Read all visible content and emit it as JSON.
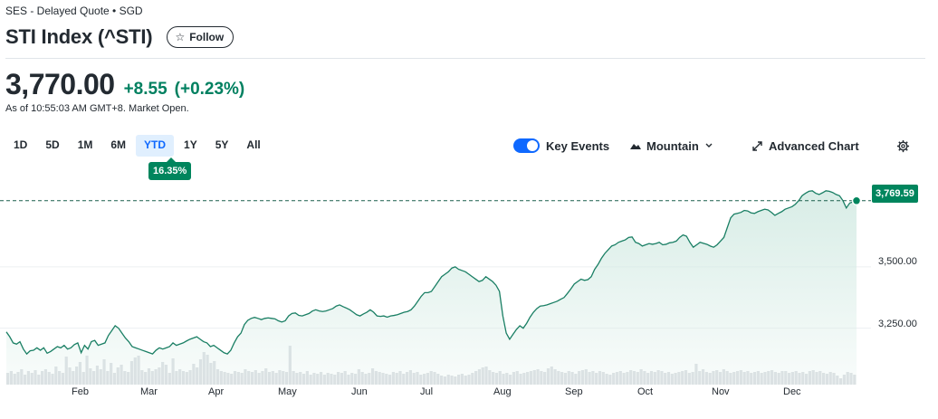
{
  "header": {
    "exchange_line": "SES - Delayed Quote • SGD",
    "title": "STI Index (^STI)",
    "follow_label": "Follow",
    "follow_icon": "star-outline-icon"
  },
  "quote": {
    "price": "3,770.00",
    "change": "+8.55",
    "change_pct": "(+0.23%)",
    "as_of": "As of 10:55:03 AM GMT+8. Market Open.",
    "up_color": "#008060"
  },
  "ranges": {
    "items": [
      "1D",
      "5D",
      "1M",
      "6M",
      "YTD",
      "1Y",
      "5Y",
      "All"
    ],
    "selected": "YTD",
    "selected_return": "16.35%"
  },
  "controls": {
    "key_events_label": "Key Events",
    "key_events_on": true,
    "chart_type_label": "Mountain",
    "advanced_label": "Advanced Chart",
    "settings_icon": "gear-icon"
  },
  "chart_data": {
    "type": "area",
    "title": "",
    "xlabel": "",
    "ylabel": "",
    "ylim": [
      3020,
      3850
    ],
    "x_axis_months": [
      "Feb",
      "Mar",
      "Apr",
      "May",
      "Jun",
      "Jul",
      "Aug",
      "Sep",
      "Oct",
      "Nov",
      "Dec"
    ],
    "y_tick_labels": [
      "3,500.00",
      "3,250.00"
    ],
    "y_ticks": [
      3500,
      3250
    ],
    "last_price_label": "3,769.59",
    "last_price": 3769.59,
    "line_color": "#1a7f64",
    "fill_color": "#d6ece5",
    "grid": true,
    "series": [
      {
        "values": [
          3235,
          3215,
          3190,
          3185,
          3195,
          3165,
          3145,
          3158,
          3160,
          3170,
          3160,
          3170,
          3148,
          3155,
          3165,
          3175,
          3170,
          3180,
          3165,
          3170,
          3183,
          3190,
          3150,
          3180,
          3165,
          3195,
          3200,
          3180,
          3185,
          3190,
          3220,
          3240,
          3260,
          3250,
          3230,
          3210,
          3195,
          3175,
          3170,
          3165,
          3160,
          3155,
          3150,
          3145,
          3160,
          3170,
          3165,
          3170,
          3175,
          3190,
          3180,
          3185,
          3190,
          3198,
          3205,
          3210,
          3215,
          3205,
          3195,
          3190,
          3175,
          3180,
          3170,
          3160,
          3150,
          3145,
          3160,
          3190,
          3215,
          3230,
          3265,
          3282,
          3290,
          3294,
          3290,
          3285,
          3290,
          3292,
          3290,
          3288,
          3280,
          3275,
          3280,
          3300,
          3310,
          3312,
          3302,
          3300,
          3305,
          3310,
          3320,
          3325,
          3320,
          3318,
          3320,
          3325,
          3330,
          3340,
          3345,
          3338,
          3332,
          3325,
          3315,
          3305,
          3300,
          3308,
          3315,
          3325,
          3315,
          3300,
          3298,
          3300,
          3295,
          3300,
          3302,
          3305,
          3310,
          3315,
          3318,
          3325,
          3340,
          3360,
          3380,
          3395,
          3395,
          3400,
          3420,
          3440,
          3460,
          3470,
          3480,
          3495,
          3500,
          3490,
          3485,
          3480,
          3470,
          3460,
          3450,
          3440,
          3445,
          3460,
          3450,
          3440,
          3425,
          3400,
          3300,
          3230,
          3205,
          3225,
          3245,
          3260,
          3250,
          3270,
          3295,
          3315,
          3330,
          3340,
          3342,
          3345,
          3350,
          3355,
          3360,
          3368,
          3375,
          3392,
          3410,
          3430,
          3440,
          3450,
          3445,
          3448,
          3460,
          3490,
          3510,
          3535,
          3555,
          3570,
          3585,
          3590,
          3600,
          3605,
          3610,
          3620,
          3622,
          3600,
          3595,
          3585,
          3590,
          3595,
          3592,
          3595,
          3600,
          3590,
          3592,
          3598,
          3600,
          3605,
          3620,
          3630,
          3625,
          3600,
          3580,
          3590,
          3600,
          3596,
          3592,
          3585,
          3580,
          3590,
          3605,
          3620,
          3660,
          3700,
          3715,
          3718,
          3722,
          3730,
          3728,
          3720,
          3718,
          3725,
          3730,
          3735,
          3732,
          3722,
          3710,
          3718,
          3725,
          3735,
          3740,
          3745,
          3755,
          3770,
          3790,
          3800,
          3808,
          3810,
          3800,
          3795,
          3802,
          3810,
          3808,
          3803,
          3795,
          3790,
          3770,
          3740,
          3760,
          3765,
          3769.59
        ]
      }
    ],
    "volume_levels": [
      0.26,
      0.3,
      0.24,
      0.28,
      0.34,
      0.22,
      0.3,
      0.26,
      0.32,
      0.22,
      0.3,
      0.34,
      0.28,
      0.24,
      0.4,
      0.3,
      0.26,
      0.62,
      0.38,
      0.3,
      0.4,
      0.5,
      0.28,
      0.64,
      0.36,
      0.3,
      0.42,
      0.34,
      0.56,
      0.3,
      0.48,
      0.26,
      0.38,
      0.44,
      0.3,
      0.28,
      0.52,
      0.6,
      0.64,
      0.32,
      0.28,
      0.36,
      0.3,
      0.34,
      0.38,
      0.5,
      0.44,
      0.26,
      0.58,
      0.3,
      0.34,
      0.3,
      0.28,
      0.32,
      0.46,
      0.38,
      0.56,
      0.72,
      0.66,
      0.48,
      0.52,
      0.34,
      0.3,
      0.28,
      0.26,
      0.24,
      0.3,
      0.28,
      0.26,
      0.34,
      0.3,
      0.28,
      0.32,
      0.26,
      0.3,
      0.36,
      0.28,
      0.3,
      0.26,
      0.32,
      0.3,
      0.28,
      0.86,
      0.3,
      0.26,
      0.28,
      0.24,
      0.3,
      0.22,
      0.26,
      0.24,
      0.28,
      0.22,
      0.26,
      0.24,
      0.22,
      0.28,
      0.26,
      0.3,
      0.22,
      0.26,
      0.24,
      0.34,
      0.28,
      0.24,
      0.26,
      0.36,
      0.3,
      0.28,
      0.26,
      0.24,
      0.22,
      0.28,
      0.26,
      0.3,
      0.24,
      0.28,
      0.32,
      0.26,
      0.28,
      0.22,
      0.24,
      0.26,
      0.3,
      0.28,
      0.24,
      0.2,
      0.18,
      0.22,
      0.2,
      0.18,
      0.22,
      0.24,
      0.2,
      0.22,
      0.26,
      0.3,
      0.34,
      0.38,
      0.4,
      0.32,
      0.28,
      0.26,
      0.3,
      0.24,
      0.26,
      0.22,
      0.28,
      0.3,
      0.24,
      0.26,
      0.28,
      0.3,
      0.32,
      0.34,
      0.3,
      0.28,
      0.36,
      0.4,
      0.34,
      0.3,
      0.28,
      0.26,
      0.3,
      0.28,
      0.24,
      0.3,
      0.32,
      0.34,
      0.28,
      0.3,
      0.26,
      0.3,
      0.28,
      0.24,
      0.22,
      0.26,
      0.28,
      0.3,
      0.26,
      0.28,
      0.32,
      0.3,
      0.28,
      0.34,
      0.3,
      0.26,
      0.3,
      0.28,
      0.32,
      0.3,
      0.26,
      0.28,
      0.24,
      0.26,
      0.28,
      0.3,
      0.32,
      0.26,
      0.28,
      0.46,
      0.3,
      0.34,
      0.28,
      0.26,
      0.3,
      0.32,
      0.28,
      0.34,
      0.3,
      0.26,
      0.28,
      0.3,
      0.32,
      0.28,
      0.3,
      0.26,
      0.28,
      0.3,
      0.26,
      0.28,
      0.3,
      0.32,
      0.28,
      0.26,
      0.3,
      0.3,
      0.26,
      0.28,
      0.3,
      0.26,
      0.28,
      0.24,
      0.3,
      0.32,
      0.28,
      0.3,
      0.26,
      0.24,
      0.28,
      0.26,
      0.2,
      0.14,
      0.22,
      0.28,
      0.26,
      0.22
    ]
  }
}
